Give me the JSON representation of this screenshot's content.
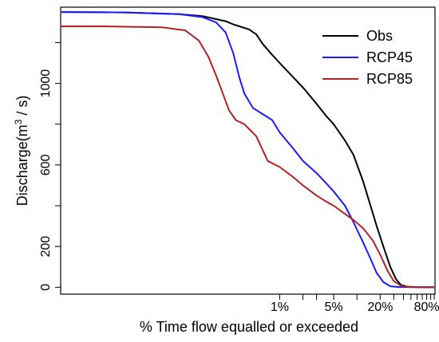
{
  "chart_data": {
    "type": "line",
    "xlabel": "% Time flow equalled or exceeded",
    "ylabel_prefix": "Discharge(m",
    "ylabel_sup": "3",
    "ylabel_suffix": " / s)",
    "x_scale": "log",
    "xlim": [
      0.0015,
      100
    ],
    "ylim": [
      -30,
      1370
    ],
    "x_ticks": [
      {
        "value": 1,
        "label": "1%"
      },
      {
        "value": 5,
        "label": "5%"
      },
      {
        "value": 20,
        "label": "20%"
      },
      {
        "value": 80,
        "label": "80%"
      }
    ],
    "x_minor_ticks": [
      2,
      3,
      10,
      30,
      40,
      50,
      60,
      70,
      90,
      100
    ],
    "y_ticks": [
      {
        "value": 0,
        "label": "0"
      },
      {
        "value": 200,
        "label": "200"
      },
      {
        "value": 600,
        "label": "600"
      },
      {
        "value": 1000,
        "label": "1000"
      }
    ],
    "y_minor_ticks": [
      400,
      800,
      1200
    ],
    "grid": false,
    "legend_position": "top-right",
    "series": [
      {
        "name": "Obs",
        "color": "#000000",
        "points": [
          [
            0.0015,
            1350
          ],
          [
            0.01,
            1348
          ],
          [
            0.05,
            1340
          ],
          [
            0.1,
            1330
          ],
          [
            0.2,
            1305
          ],
          [
            0.25,
            1290
          ],
          [
            0.3,
            1280
          ],
          [
            0.4,
            1265
          ],
          [
            0.5,
            1240
          ],
          [
            0.6,
            1195
          ],
          [
            0.8,
            1140
          ],
          [
            1,
            1100
          ],
          [
            1.5,
            1030
          ],
          [
            2,
            980
          ],
          [
            3,
            900
          ],
          [
            4,
            840
          ],
          [
            5,
            800
          ],
          [
            7,
            720
          ],
          [
            9,
            650
          ],
          [
            12,
            520
          ],
          [
            15,
            400
          ],
          [
            18,
            300
          ],
          [
            22,
            200
          ],
          [
            27,
            100
          ],
          [
            32,
            40
          ],
          [
            37,
            12
          ],
          [
            45,
            3
          ],
          [
            60,
            1
          ],
          [
            80,
            0
          ],
          [
            100,
            0
          ]
        ]
      },
      {
        "name": "RCP45",
        "color": "#1a1aff",
        "points": [
          [
            0.0015,
            1350
          ],
          [
            0.01,
            1348
          ],
          [
            0.05,
            1340
          ],
          [
            0.1,
            1325
          ],
          [
            0.15,
            1300
          ],
          [
            0.2,
            1250
          ],
          [
            0.25,
            1150
          ],
          [
            0.3,
            1030
          ],
          [
            0.35,
            950
          ],
          [
            0.45,
            880
          ],
          [
            0.6,
            850
          ],
          [
            0.8,
            820
          ],
          [
            1,
            760
          ],
          [
            1.5,
            680
          ],
          [
            2,
            620
          ],
          [
            3,
            560
          ],
          [
            4,
            510
          ],
          [
            5,
            470
          ],
          [
            7,
            400
          ],
          [
            9,
            320
          ],
          [
            12,
            220
          ],
          [
            15,
            140
          ],
          [
            18,
            70
          ],
          [
            22,
            25
          ],
          [
            27,
            5
          ],
          [
            35,
            1
          ],
          [
            60,
            0
          ],
          [
            100,
            0
          ]
        ]
      },
      {
        "name": "RCP85",
        "color": "#b22222",
        "points": [
          [
            0.0015,
            1280
          ],
          [
            0.005,
            1280
          ],
          [
            0.01,
            1278
          ],
          [
            0.03,
            1275
          ],
          [
            0.06,
            1260
          ],
          [
            0.09,
            1210
          ],
          [
            0.12,
            1130
          ],
          [
            0.15,
            1040
          ],
          [
            0.18,
            960
          ],
          [
            0.22,
            870
          ],
          [
            0.27,
            820
          ],
          [
            0.35,
            800
          ],
          [
            0.5,
            740
          ],
          [
            0.7,
            620
          ],
          [
            1,
            590
          ],
          [
            1.5,
            540
          ],
          [
            2,
            500
          ],
          [
            3,
            450
          ],
          [
            4,
            420
          ],
          [
            5,
            400
          ],
          [
            7,
            360
          ],
          [
            9,
            330
          ],
          [
            12,
            290
          ],
          [
            16,
            230
          ],
          [
            20,
            160
          ],
          [
            25,
            80
          ],
          [
            30,
            30
          ],
          [
            37,
            8
          ],
          [
            45,
            2
          ],
          [
            60,
            0
          ],
          [
            100,
            0
          ]
        ]
      }
    ]
  }
}
